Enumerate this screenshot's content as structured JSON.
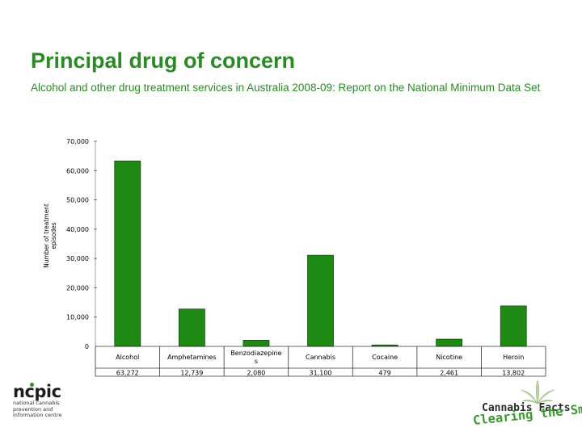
{
  "slide": {
    "title": "Principal drug of concern",
    "subtitle": "Alcohol and other drug treatment services in Australia 2008-09: Report on the National Minimum Data Set"
  },
  "chart_data": {
    "type": "bar",
    "ylabel": "Number of treatment episodes",
    "ylim": [
      0,
      70000
    ],
    "yticks": [
      0,
      10000,
      20000,
      30000,
      40000,
      50000,
      60000,
      70000
    ],
    "ytick_labels": [
      "0",
      "10,000",
      "20,000",
      "30,000",
      "40,000",
      "50,000",
      "60,000",
      "70,000"
    ],
    "categories": [
      "Alcohol",
      "Amphetamines",
      "Benzodiazepines",
      "Cannabis",
      "Cocaine",
      "Nicotine",
      "Heroin"
    ],
    "category_labels": [
      [
        "Alcohol"
      ],
      [
        "Amphetamines"
      ],
      [
        "Benzodiazepine",
        "s"
      ],
      [
        "Cannabis"
      ],
      [
        "Cocaine"
      ],
      [
        "Nicotine"
      ],
      [
        "Heroin"
      ]
    ],
    "values": [
      63272,
      12739,
      2080,
      31100,
      479,
      2461,
      13802
    ],
    "value_labels": [
      "63,272",
      "12,739",
      "2,080",
      "31,100",
      "479",
      "2,461",
      "13,802"
    ],
    "bar_color": "#1e8a14",
    "bar_edge_color": "#0b4f06",
    "grid": false,
    "legend": "none",
    "data_table": true
  },
  "logos": {
    "left_main": "ncpic",
    "left_sub": [
      "national cannabis",
      "prevention and",
      "information centre"
    ],
    "right_top": "Cannabis Facts",
    "right_bottom": "Clearing the Smoke"
  },
  "colors": {
    "accent": "#2a8a24"
  }
}
